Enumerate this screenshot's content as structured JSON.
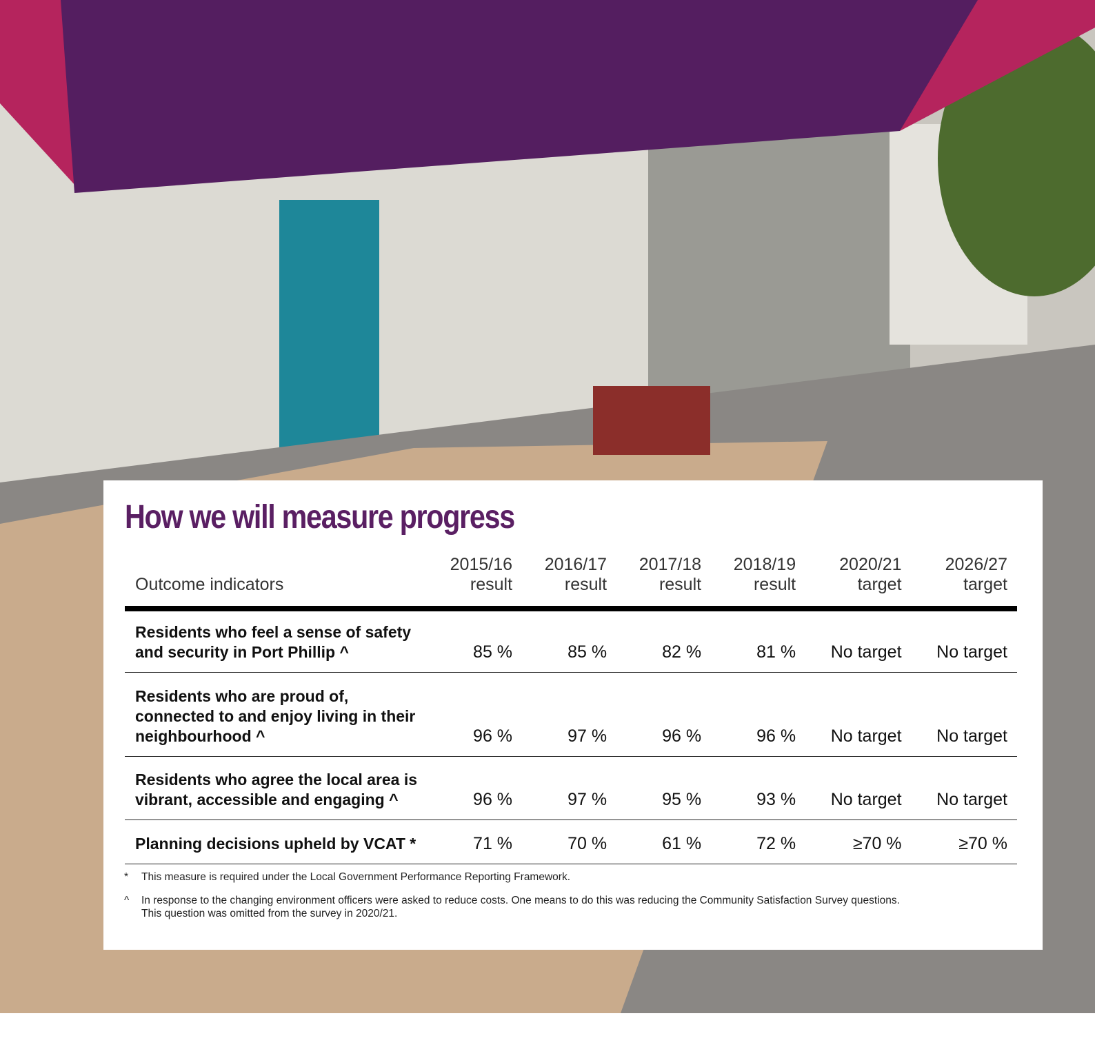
{
  "header": {
    "title": "How we will measure progress"
  },
  "table": {
    "headers": [
      [
        "Outcome indicators"
      ],
      [
        "2015/16",
        "result"
      ],
      [
        "2016/17",
        "result"
      ],
      [
        "2017/18",
        "result"
      ],
      [
        "2018/19",
        "result"
      ],
      [
        "2020/21",
        "target"
      ],
      [
        "2026/27",
        "target"
      ]
    ],
    "rows": [
      [
        "Residents who feel a sense of safety and security in Port Phillip ^",
        "85 %",
        "85 %",
        "82 %",
        "81 %",
        "No target",
        "No target"
      ],
      [
        "Residents who are proud of, connected to and enjoy living in their neighbourhood ^",
        "96 %",
        "97 %",
        "96 %",
        "96 %",
        "No target",
        "No target"
      ],
      [
        "Residents who agree the local area is vibrant, accessible and engaging ^",
        "96 %",
        "97 %",
        "95 %",
        "93 %",
        "No target",
        "No target"
      ],
      [
        "Planning decisions upheld by VCAT *",
        "71 %",
        "70 %",
        "61 %",
        "72 %",
        "≥70 %",
        "≥70 %"
      ]
    ]
  },
  "footnotes": [
    {
      "symbol": "*",
      "lines": [
        "This measure is required under the Local Government Performance Reporting Framework."
      ]
    },
    {
      "symbol": "^",
      "lines": [
        "In response to the changing environment officers were asked to reduce costs. One means to do this was reducing the Community Satisfaction Survey questions.",
        "This question was omitted from the survey in 2020/21."
      ]
    }
  ]
}
